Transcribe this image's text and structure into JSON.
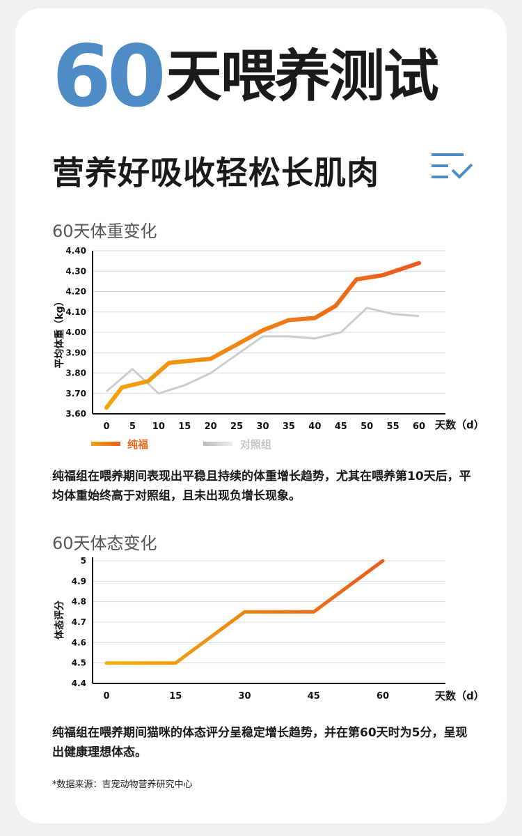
{
  "hero": {
    "number": "60",
    "text": "天喂养测试"
  },
  "subtitle": "营养好吸收轻松长肌肉",
  "icons": {
    "header_icon": "checklist-icon"
  },
  "colors": {
    "accent_blue": "#4f8cc5",
    "series_orange_start": "#f2a40d",
    "series_orange_end": "#eb5a1e",
    "control_gray": "#cccccc"
  },
  "weight_section": {
    "title": "60天体重变化",
    "description": "纯福组在喂养期间表现出平稳且持续的体重增长趋势，尤其在喂养第10天后，平均体重始终高于对照组，且未出现负增长现象。"
  },
  "body_section": {
    "title": "60天体态变化",
    "description": "纯福组在喂养期间猫咪的体态评分呈稳定增长趋势，并在第60天时为5分，呈现出健康理想体态。"
  },
  "source": "*数据来源：吉宠动物营养研究中心",
  "chart_data": [
    {
      "type": "line",
      "title": "60天体重变化",
      "xlabel": "天数（d）",
      "ylabel": "平均体重（kg）",
      "x_ticks": [
        "0",
        "5",
        "10",
        "15",
        "20",
        "25",
        "30",
        "35",
        "40",
        "45",
        "50",
        "55",
        "60"
      ],
      "y_ticks": [
        "3.60",
        "3.70",
        "3.80",
        "3.90",
        "4.00",
        "4.10",
        "4.20",
        "4.30",
        "4.40"
      ],
      "ylim": [
        3.6,
        4.4
      ],
      "xlim": [
        0,
        60
      ],
      "grid": "horizontal",
      "legend_position": "bottom-left",
      "series": [
        {
          "name": "纯福",
          "x": [
            0,
            3,
            8,
            12,
            20,
            25,
            30,
            35,
            40,
            44,
            48,
            53,
            60
          ],
          "values": [
            3.63,
            3.73,
            3.76,
            3.85,
            3.87,
            3.94,
            4.01,
            4.06,
            4.07,
            4.13,
            4.26,
            4.28,
            4.34
          ]
        },
        {
          "name": "对照组",
          "x": [
            0,
            5,
            10,
            15,
            20,
            25,
            30,
            35,
            40,
            45,
            50,
            55,
            60
          ],
          "values": [
            3.71,
            3.82,
            3.7,
            3.74,
            3.8,
            3.89,
            3.98,
            3.98,
            3.97,
            4.0,
            4.12,
            4.09,
            4.08
          ]
        }
      ]
    },
    {
      "type": "line",
      "title": "60天体态变化",
      "xlabel": "天数（d）",
      "ylabel": "体态评分",
      "x_ticks": [
        "0",
        "15",
        "30",
        "45",
        "60"
      ],
      "y_ticks": [
        "4.4",
        "4.5",
        "4.6",
        "4.7",
        "4.8",
        "4.9",
        "5"
      ],
      "ylim": [
        4.4,
        5.0
      ],
      "xlim": [
        0,
        60
      ],
      "grid": "horizontal",
      "series": [
        {
          "x": [
            0,
            15,
            30,
            45,
            60
          ],
          "values": [
            4.5,
            4.5,
            4.75,
            4.75,
            5.0
          ]
        }
      ]
    }
  ]
}
